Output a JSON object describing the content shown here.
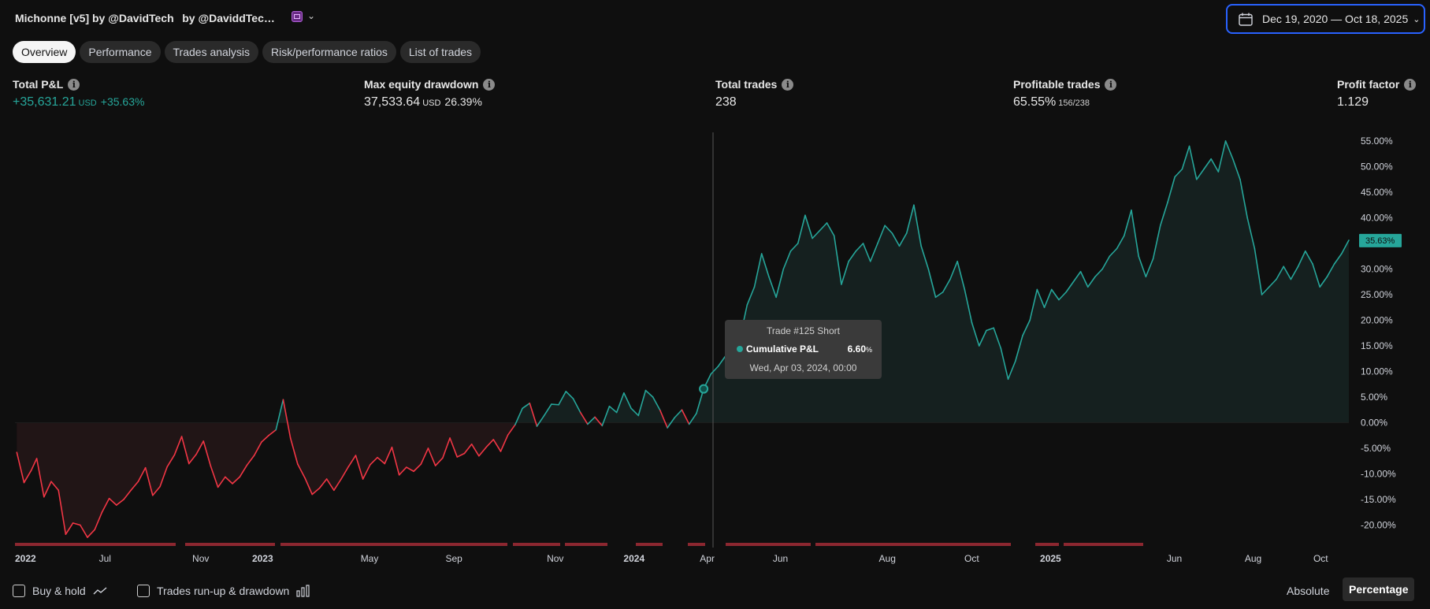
{
  "header": {
    "title": "Michonne [v5] by @DavidTech   by @DaviddTec…",
    "date_range": "Dec 19, 2020 — Oct 18, 2025"
  },
  "tabs": [
    {
      "label": "Overview",
      "active": true
    },
    {
      "label": "Performance",
      "active": false
    },
    {
      "label": "Trades analysis",
      "active": false
    },
    {
      "label": "Risk/performance ratios",
      "active": false
    },
    {
      "label": "List of trades",
      "active": false
    }
  ],
  "metrics": {
    "total_pnl": {
      "label": "Total P&L",
      "value": "+35,631.21",
      "unit": "USD",
      "pct": "+35.63%"
    },
    "max_drawdown": {
      "label": "Max equity drawdown",
      "value": "37,533.64",
      "unit": "USD",
      "pct": "26.39%"
    },
    "total_trades": {
      "label": "Total trades",
      "value": "238"
    },
    "profitable_trades": {
      "label": "Profitable trades",
      "value": "65.55%",
      "sub": "156/238"
    },
    "profit_factor": {
      "label": "Profit factor",
      "value": "1.129"
    }
  },
  "info_icon_glyph": "i",
  "tooltip": {
    "title": "Trade #125 Short",
    "label": "Cumulative P&L",
    "value": "6.60",
    "unit": "%",
    "date": "Wed, Apr 03, 2024, 00:00"
  },
  "footer": {
    "buy_hold": "Buy & hold",
    "runup": "Trades run-up & drawdown",
    "absolute": "Absolute",
    "percentage": "Percentage"
  },
  "colors": {
    "profit": "#26a69a",
    "loss": "#f23645",
    "accent": "#2962ff",
    "background": "#0f0f0f"
  },
  "chart_data": {
    "type": "line",
    "series_label": "Cumulative P&L",
    "y_unit": "%",
    "ylim": [
      -23,
      57
    ],
    "y_ticks": [
      "55.00%",
      "50.00%",
      "45.00%",
      "40.00%",
      "35.00%",
      "30.00%",
      "25.00%",
      "20.00%",
      "15.00%",
      "10.00%",
      "5.00%",
      "0.00%",
      "-5.00%",
      "-10.00%",
      "-15.00%",
      "-20.00%"
    ],
    "y_tick_values": [
      55,
      50,
      45,
      40,
      35,
      30,
      25,
      20,
      15,
      10,
      5,
      0,
      -5,
      -10,
      -15,
      -20
    ],
    "last_value_label": "35.63%",
    "last_value": 35.63,
    "trade_count": 238,
    "crosshair_trade": 125,
    "x_labels": [
      {
        "label": "2022",
        "trade": 1,
        "bold": true
      },
      {
        "label": "Jul",
        "trade": 17,
        "bold": false
      },
      {
        "label": "Nov",
        "trade": 34,
        "bold": false
      },
      {
        "label": "2023",
        "trade": 45,
        "bold": true
      },
      {
        "label": "May",
        "trade": 64,
        "bold": false
      },
      {
        "label": "Sep",
        "trade": 79,
        "bold": false
      },
      {
        "label": "Nov",
        "trade": 97,
        "bold": false
      },
      {
        "label": "2024",
        "trade": 111,
        "bold": true
      },
      {
        "label": "Apr",
        "trade": 124,
        "bold": false
      },
      {
        "label": "Jun",
        "trade": 137,
        "bold": false
      },
      {
        "label": "Aug",
        "trade": 156,
        "bold": false
      },
      {
        "label": "Oct",
        "trade": 171,
        "bold": false
      },
      {
        "label": "2025",
        "trade": 185,
        "bold": true
      },
      {
        "label": "Jun",
        "trade": 207,
        "bold": false
      },
      {
        "label": "Aug",
        "trade": 221,
        "bold": false
      },
      {
        "label": "Oct",
        "trade": 233,
        "bold": false
      }
    ],
    "points": [
      [
        1,
        -5.8
      ],
      [
        5,
        -11.7
      ],
      [
        9,
        -9.3
      ],
      [
        12,
        -7.0
      ],
      [
        16,
        -14.5
      ],
      [
        20,
        -11.5
      ],
      [
        24,
        -13.2
      ],
      [
        28,
        -21.8
      ],
      [
        32,
        -19.6
      ],
      [
        36,
        -20.0
      ],
      [
        40,
        -22.4
      ],
      [
        44,
        -20.9
      ],
      [
        48,
        -17.5
      ],
      [
        52,
        -14.8
      ],
      [
        56,
        -16.1
      ],
      [
        60,
        -15.0
      ],
      [
        64,
        -13.2
      ],
      [
        68,
        -11.5
      ],
      [
        72,
        -8.8
      ],
      [
        76,
        -14.2
      ],
      [
        80,
        -12.5
      ],
      [
        84,
        -8.6
      ],
      [
        88,
        -6.3
      ],
      [
        92,
        -2.7
      ],
      [
        96,
        -8.0
      ],
      [
        100,
        -6.2
      ],
      [
        104,
        -3.6
      ],
      [
        108,
        -8.5
      ],
      [
        112,
        -12.6
      ],
      [
        116,
        -10.6
      ],
      [
        120,
        -11.9
      ],
      [
        124,
        -10.6
      ],
      [
        128,
        -8.3
      ],
      [
        132,
        -6.4
      ],
      [
        136,
        -3.8
      ],
      [
        140,
        -2.5
      ],
      [
        144,
        -1.4
      ],
      [
        148,
        4.5
      ],
      [
        152,
        -3.0
      ],
      [
        156,
        -8.1
      ],
      [
        160,
        -10.8
      ],
      [
        164,
        -14.0
      ],
      [
        168,
        -12.8
      ],
      [
        172,
        -11.0
      ],
      [
        176,
        -13.2
      ],
      [
        180,
        -11.0
      ],
      [
        184,
        -8.6
      ],
      [
        188,
        -6.4
      ],
      [
        192,
        -11.0
      ],
      [
        196,
        -8.2
      ],
      [
        200,
        -6.8
      ],
      [
        204,
        -8.0
      ],
      [
        208,
        -4.8
      ],
      [
        212,
        -10.2
      ],
      [
        216,
        -8.7
      ],
      [
        220,
        -9.5
      ],
      [
        224,
        -8.1
      ],
      [
        228,
        -5.0
      ],
      [
        232,
        -8.4
      ],
      [
        236,
        -6.9
      ],
      [
        240,
        -3.0
      ],
      [
        244,
        -6.7
      ],
      [
        248,
        -6.0
      ],
      [
        252,
        -4.2
      ],
      [
        256,
        -6.5
      ],
      [
        260,
        -4.8
      ],
      [
        264,
        -3.3
      ],
      [
        268,
        -5.6
      ],
      [
        272,
        -2.4
      ],
      [
        276,
        -0.4
      ],
      [
        280,
        2.8
      ],
      [
        284,
        3.8
      ],
      [
        288,
        -0.7
      ],
      [
        292,
        1.4
      ],
      [
        296,
        3.6
      ],
      [
        300,
        3.5
      ],
      [
        304,
        6.1
      ],
      [
        308,
        4.7
      ],
      [
        312,
        2.0
      ],
      [
        316,
        -0.3
      ],
      [
        320,
        1.1
      ],
      [
        324,
        -0.6
      ],
      [
        328,
        3.2
      ],
      [
        332,
        2.0
      ],
      [
        336,
        5.8
      ],
      [
        340,
        2.8
      ],
      [
        344,
        1.4
      ],
      [
        348,
        6.3
      ],
      [
        352,
        5.0
      ],
      [
        356,
        2.4
      ],
      [
        360,
        -1.0
      ],
      [
        364,
        1.0
      ],
      [
        368,
        2.5
      ],
      [
        372,
        -0.3
      ],
      [
        376,
        1.8
      ],
      [
        380,
        6.6
      ],
      [
        384,
        9.5
      ],
      [
        388,
        11.0
      ],
      [
        392,
        13.0
      ],
      [
        396,
        15.0
      ],
      [
        400,
        16.5
      ],
      [
        404,
        23.0
      ],
      [
        408,
        26.5
      ],
      [
        412,
        33.0
      ],
      [
        416,
        28.5
      ],
      [
        420,
        24.5
      ],
      [
        424,
        30.0
      ],
      [
        428,
        33.5
      ],
      [
        432,
        35.0
      ],
      [
        436,
        40.5
      ],
      [
        440,
        36.0
      ],
      [
        444,
        37.5
      ],
      [
        448,
        39.0
      ],
      [
        452,
        36.5
      ],
      [
        456,
        27.0
      ],
      [
        460,
        31.5
      ],
      [
        464,
        33.5
      ],
      [
        468,
        35.0
      ],
      [
        472,
        31.5
      ],
      [
        476,
        35.0
      ],
      [
        480,
        38.5
      ],
      [
        484,
        37.0
      ],
      [
        488,
        34.5
      ],
      [
        492,
        37.0
      ],
      [
        496,
        42.5
      ],
      [
        500,
        34.5
      ],
      [
        504,
        30.0
      ],
      [
        508,
        24.5
      ],
      [
        512,
        25.5
      ],
      [
        516,
        28.0
      ],
      [
        520,
        31.5
      ],
      [
        524,
        26.0
      ],
      [
        528,
        19.5
      ],
      [
        532,
        15.0
      ],
      [
        536,
        18.0
      ],
      [
        540,
        18.5
      ],
      [
        544,
        14.5
      ],
      [
        548,
        8.5
      ],
      [
        552,
        12.0
      ],
      [
        556,
        17.0
      ],
      [
        560,
        20.0
      ],
      [
        564,
        26.0
      ],
      [
        568,
        22.5
      ],
      [
        572,
        26.0
      ],
      [
        576,
        24.0
      ],
      [
        580,
        25.5
      ],
      [
        584,
        27.5
      ],
      [
        588,
        29.5
      ],
      [
        592,
        26.5
      ],
      [
        596,
        28.5
      ],
      [
        600,
        30.0
      ],
      [
        604,
        32.5
      ],
      [
        608,
        34.0
      ],
      [
        612,
        36.5
      ],
      [
        616,
        41.5
      ],
      [
        620,
        32.5
      ],
      [
        624,
        28.5
      ],
      [
        628,
        32.0
      ],
      [
        632,
        38.5
      ],
      [
        636,
        43.0
      ],
      [
        640,
        48.0
      ],
      [
        644,
        49.5
      ],
      [
        648,
        54.0
      ],
      [
        652,
        47.5
      ],
      [
        656,
        49.5
      ],
      [
        660,
        51.5
      ],
      [
        664,
        49.0
      ],
      [
        668,
        55.0
      ],
      [
        672,
        51.5
      ],
      [
        676,
        47.5
      ],
      [
        680,
        40.0
      ],
      [
        684,
        34.0
      ],
      [
        688,
        25.0
      ],
      [
        692,
        26.5
      ],
      [
        696,
        28.0
      ],
      [
        700,
        30.5
      ],
      [
        704,
        28.0
      ],
      [
        708,
        30.5
      ],
      [
        712,
        33.5
      ],
      [
        716,
        31.0
      ],
      [
        720,
        26.5
      ],
      [
        724,
        28.5
      ],
      [
        728,
        31.0
      ],
      [
        732,
        33.0
      ],
      [
        736,
        35.63
      ]
    ],
    "drawdown_segments": [
      [
        0,
        204
      ],
      [
        216,
        330
      ],
      [
        337,
        625
      ],
      [
        632,
        692
      ],
      [
        698,
        752
      ],
      [
        788,
        822
      ],
      [
        854,
        876
      ],
      [
        902,
        1010
      ],
      [
        1016,
        1264
      ],
      [
        1295,
        1325
      ],
      [
        1331,
        1432
      ]
    ]
  }
}
